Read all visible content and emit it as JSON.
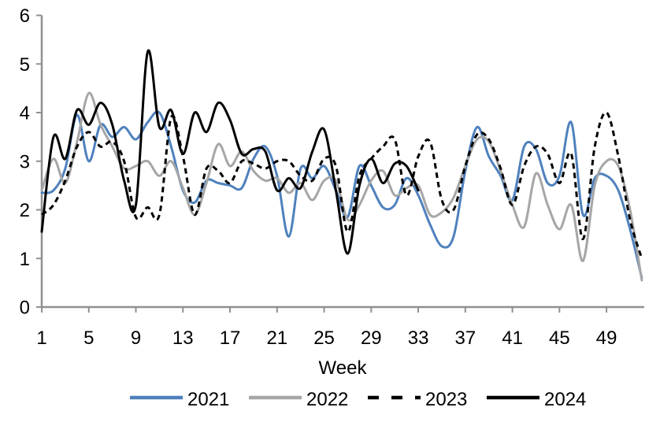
{
  "chart_data": {
    "type": "line",
    "title": "",
    "xlabel": "Week",
    "ylabel": "",
    "x_start": 1,
    "x_ticks": [
      1,
      5,
      9,
      13,
      17,
      21,
      25,
      29,
      33,
      37,
      41,
      45,
      49
    ],
    "y_ticks": [
      0,
      1,
      2,
      3,
      4,
      5,
      6
    ],
    "xlim": [
      1,
      52
    ],
    "ylim": [
      0,
      6
    ],
    "grid": false,
    "legend_position": "bottom",
    "smooth_lines": true,
    "axis_color": "#909090",
    "text_color": "#000000",
    "background_color": "#ffffff",
    "series": [
      {
        "name": "2021",
        "color": "#4F81BD",
        "dash": false,
        "values": [
          2.35,
          2.4,
          2.85,
          3.95,
          3.0,
          3.75,
          3.5,
          3.7,
          3.45,
          3.8,
          4.0,
          3.3,
          2.4,
          2.15,
          2.6,
          2.55,
          2.5,
          2.45,
          3.05,
          3.3,
          2.7,
          1.45,
          2.85,
          2.65,
          2.9,
          2.4,
          1.85,
          2.9,
          2.5,
          2.05,
          2.1,
          2.65,
          2.3,
          1.7,
          1.25,
          1.45,
          2.8,
          3.7,
          3.1,
          2.7,
          2.2,
          3.3,
          3.25,
          2.55,
          2.7,
          3.8,
          1.9,
          2.65,
          2.7,
          2.4,
          1.6,
          0.6
        ]
      },
      {
        "name": "2022",
        "color": "#A6A6A6",
        "dash": false,
        "values": [
          2.4,
          3.05,
          2.55,
          3.4,
          4.4,
          3.75,
          3.3,
          2.85,
          2.9,
          3.0,
          2.7,
          3.0,
          2.45,
          1.9,
          2.55,
          3.35,
          2.9,
          3.2,
          2.8,
          2.6,
          2.65,
          2.35,
          2.55,
          2.2,
          2.6,
          2.6,
          1.8,
          2.1,
          2.6,
          2.8,
          2.3,
          2.45,
          2.5,
          1.9,
          1.95,
          2.25,
          2.9,
          3.45,
          3.4,
          2.8,
          2.1,
          1.65,
          2.75,
          2.1,
          1.6,
          2.1,
          0.95,
          2.5,
          3.0,
          2.9,
          2.0,
          0.55
        ]
      },
      {
        "name": "2023",
        "color": "#000000",
        "dash": true,
        "values": [
          1.9,
          2.1,
          2.6,
          3.3,
          3.6,
          3.3,
          3.4,
          3.0,
          1.85,
          2.05,
          1.9,
          3.9,
          3.1,
          1.9,
          2.85,
          2.8,
          2.55,
          3.0,
          2.95,
          2.85,
          3.0,
          3.0,
          2.7,
          2.6,
          3.05,
          2.9,
          1.55,
          2.7,
          3.05,
          3.3,
          3.45,
          2.3,
          3.1,
          3.4,
          2.2,
          2.0,
          2.9,
          3.55,
          3.45,
          2.85,
          2.1,
          2.9,
          3.3,
          3.15,
          2.55,
          3.15,
          1.4,
          3.3,
          4.0,
          3.1,
          1.8,
          1.0
        ]
      },
      {
        "name": "2024",
        "color": "#000000",
        "dash": false,
        "values": [
          1.55,
          3.5,
          3.05,
          4.05,
          3.75,
          4.2,
          3.75,
          2.6,
          2.1,
          5.25,
          3.7,
          4.05,
          3.15,
          4.0,
          3.6,
          4.2,
          3.85,
          3.15,
          3.25,
          3.2,
          2.4,
          2.65,
          2.45,
          3.2,
          3.65,
          2.4,
          1.1,
          2.5,
          3.05,
          2.55,
          2.95,
          2.9,
          2.4
        ]
      }
    ]
  }
}
